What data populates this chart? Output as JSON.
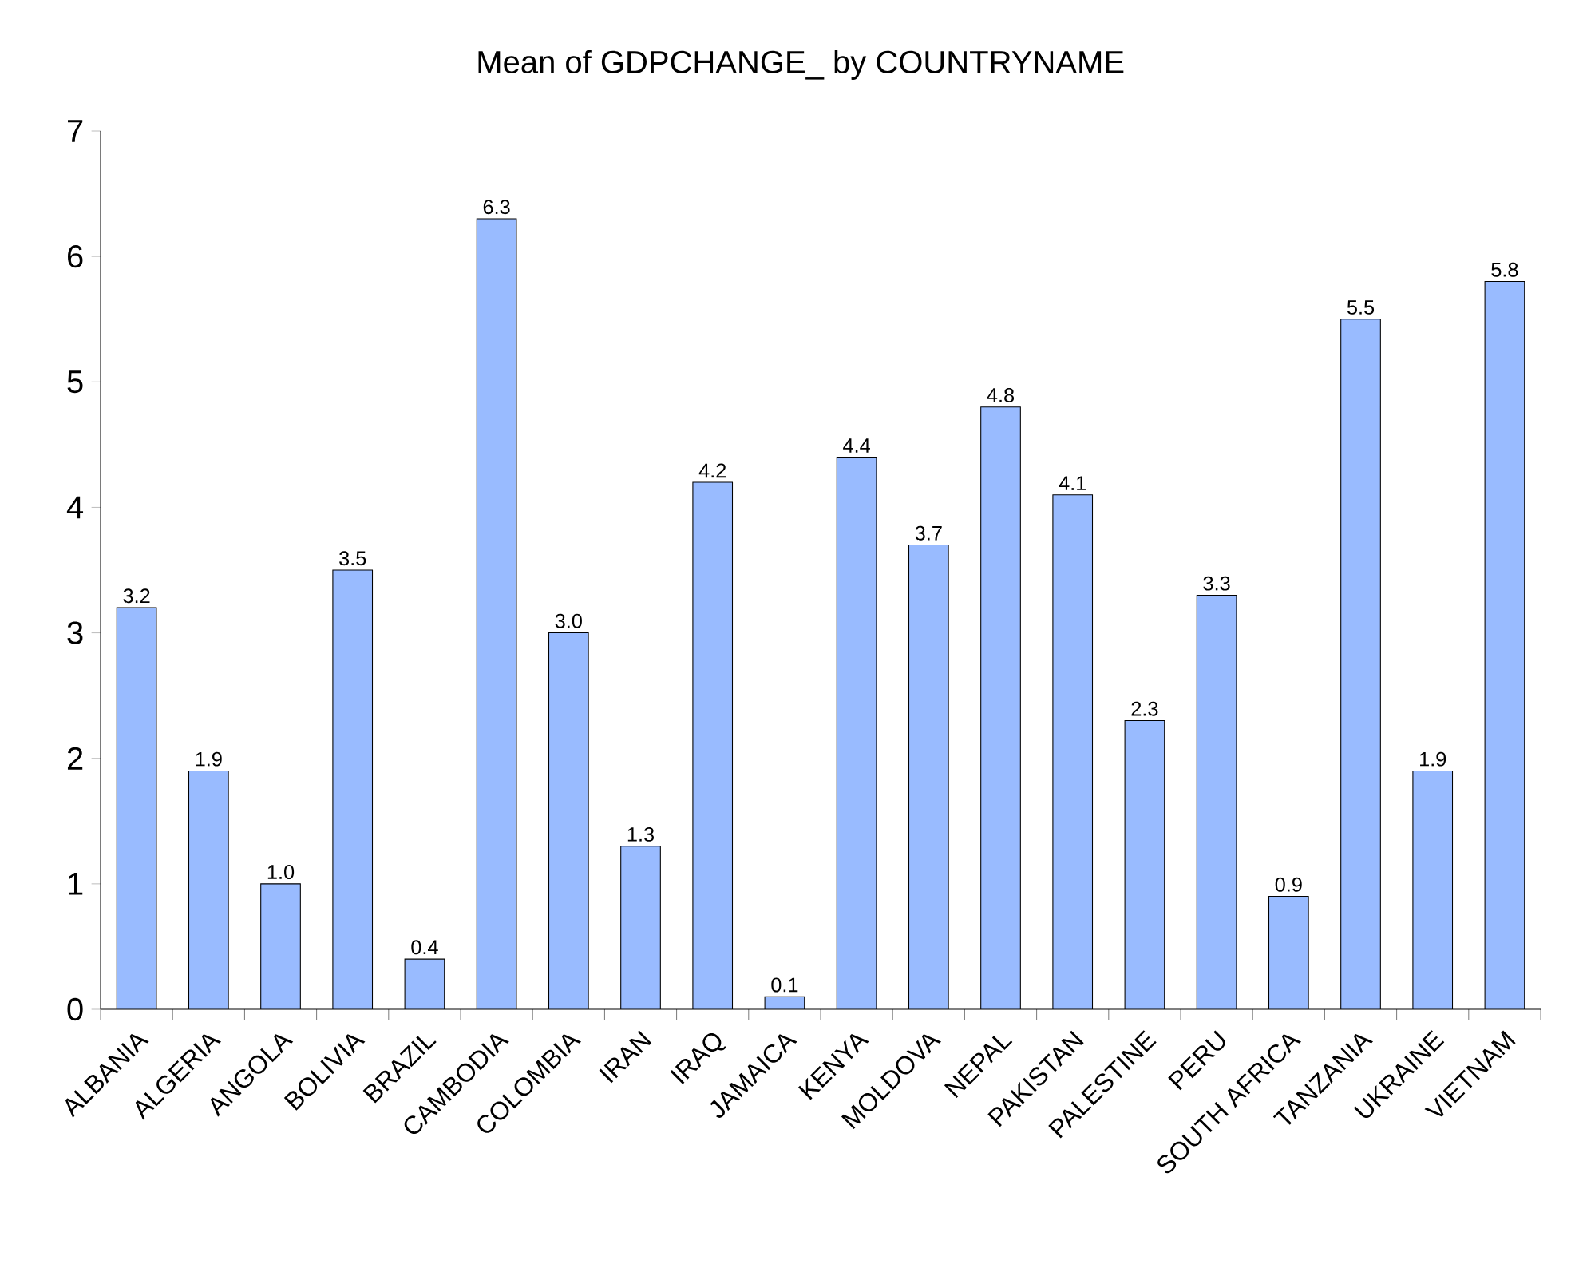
{
  "chart_data": {
    "type": "bar",
    "title": "Mean of GDPCHANGE_ by COUNTRYNAME",
    "categories": [
      "ALBANIA",
      "ALGERIA",
      "ANGOLA",
      "BOLIVIA",
      "BRAZIL",
      "CAMBODIA",
      "COLOMBIA",
      "IRAN",
      "IRAQ",
      "JAMAICA",
      "KENYA",
      "MOLDOVA",
      "NEPAL",
      "PAKISTAN",
      "PALESTINE",
      "PERU",
      "SOUTH AFRICA",
      "TANZANIA",
      "UKRAINE",
      "VIETNAM"
    ],
    "values": [
      3.2,
      1.9,
      1.0,
      3.5,
      0.4,
      6.3,
      3.0,
      1.3,
      4.2,
      0.1,
      4.4,
      3.7,
      4.8,
      4.1,
      2.3,
      3.3,
      0.9,
      5.5,
      1.9,
      5.8
    ],
    "value_labels": [
      "3.2",
      "1.9",
      "1.0",
      "3.5",
      "0.4",
      "6.3",
      "3.0",
      "1.3",
      "4.2",
      "0.1",
      "4.4",
      "3.7",
      "4.8",
      "4.1",
      "2.3",
      "3.3",
      "0.9",
      "5.5",
      "1.9",
      "5.8"
    ],
    "color": "#99bbff",
    "ylim": [
      0,
      7
    ],
    "yticks": [
      0,
      1,
      2,
      3,
      4,
      5,
      6,
      7
    ],
    "grid": false
  }
}
